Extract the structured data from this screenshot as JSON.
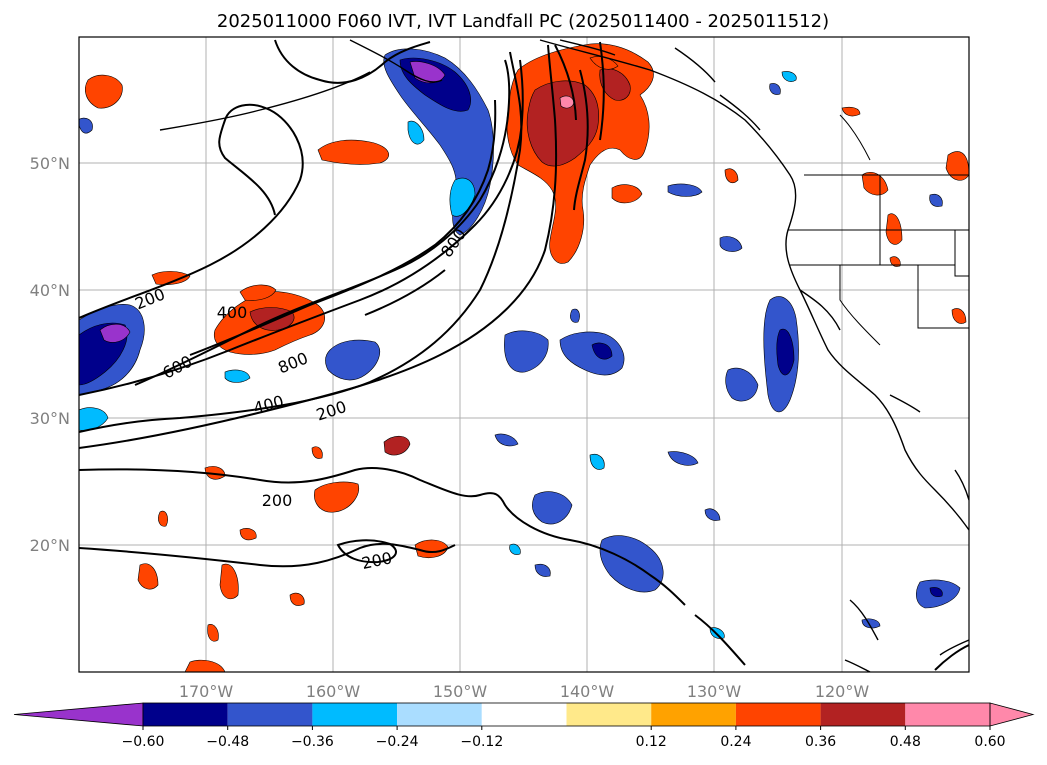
{
  "title": "2025011000 F060 IVT, IVT Landfall PC (2025011400 - 2025011512)",
  "axes": {
    "lon_ticks": [
      "170°W",
      "160°W",
      "150°W",
      "140°W",
      "130°W",
      "120°W"
    ],
    "lat_ticks": [
      "50°N",
      "40°N",
      "30°N",
      "20°N"
    ],
    "lon_range": [
      -180,
      -110
    ],
    "lat_range": [
      10,
      60
    ]
  },
  "colorbar": {
    "ticks": [
      "−0.60",
      "−0.48",
      "−0.36",
      "−0.24",
      "−0.12",
      "0.12",
      "0.24",
      "0.36",
      "0.48",
      "0.60"
    ],
    "colors": {
      "under": "#9933cc",
      "bins": [
        "#00008b",
        "#3355cc",
        "#00bbff",
        "#aaddff",
        "#ffffff",
        "#ffe98a",
        "#ffa200",
        "#ff4400",
        "#b22222",
        "#ff88aa"
      ],
      "over": "#ff88aa"
    }
  },
  "contour_labels": [
    "200",
    "400",
    "600",
    "800",
    "800",
    "400",
    "200",
    "200",
    "200"
  ],
  "map": {
    "grid": true,
    "coastline_color": "#000000",
    "state_borders": true
  }
}
